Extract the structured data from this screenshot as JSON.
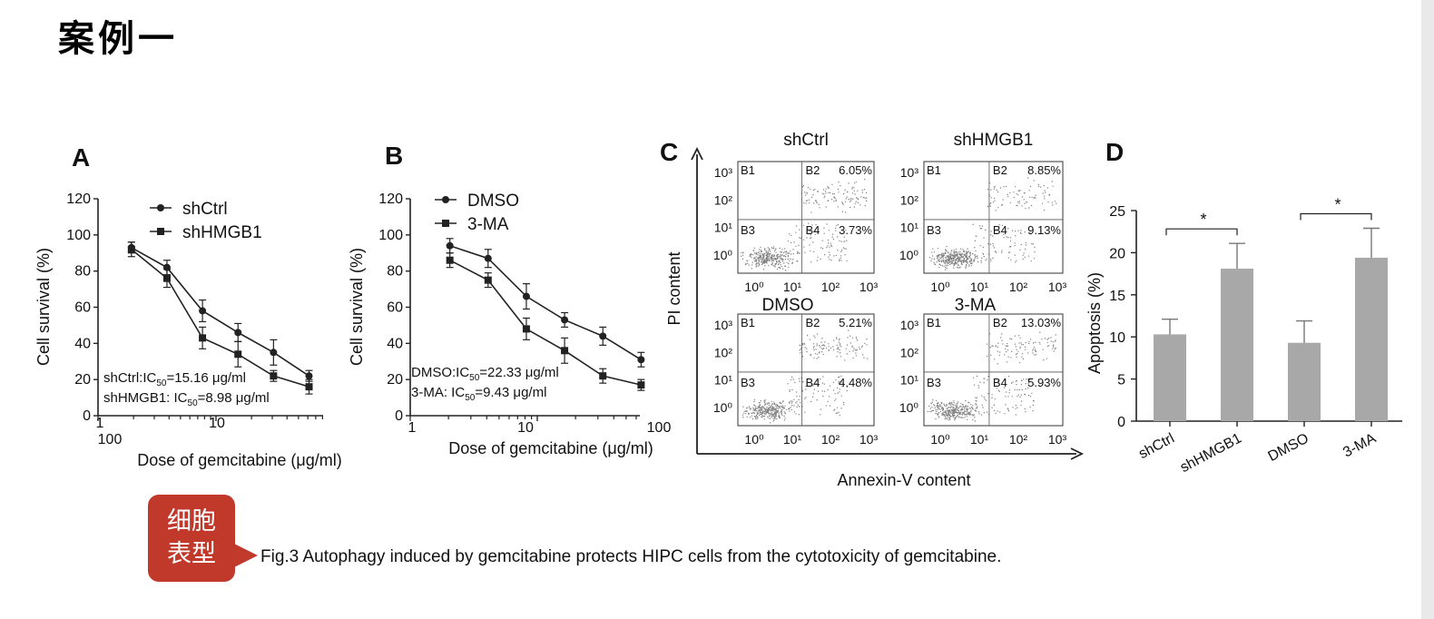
{
  "slide": {
    "title": "案例一"
  },
  "badge": {
    "line1": "细胞",
    "line2": "表型"
  },
  "caption": "Fig.3 Autophagy induced by gemcitabine protects HIPC cells from the cytotoxicity of gemcitabine.",
  "colors": {
    "badge": "#c0392b",
    "bar": "#a8a8a8",
    "line": "#222222",
    "dots": "#555555"
  },
  "chart_data": [
    {
      "panel": "A",
      "type": "line",
      "xlabel": "Dose of gemcitabine (μg/ml)",
      "ylabel": "Cell survival (%)",
      "x_scale": "log",
      "x_tick_labels": [
        "1",
        "10",
        "100"
      ],
      "y_ticks": [
        0,
        20,
        40,
        60,
        80,
        100,
        120
      ],
      "ylim": [
        0,
        120
      ],
      "legend_position": "top",
      "series": [
        {
          "name": "shCtrl",
          "marker": "circle",
          "x": [
            1.92,
            3.84,
            7.68,
            15.36,
            30.72,
            61.44
          ],
          "y": [
            93,
            82,
            58,
            46,
            35,
            22
          ],
          "err": [
            3,
            4,
            6,
            5,
            7,
            3
          ]
        },
        {
          "name": "shHMGB1",
          "marker": "square",
          "x": [
            1.92,
            3.84,
            7.68,
            15.36,
            30.72,
            61.44
          ],
          "y": [
            92,
            76,
            43,
            34,
            22,
            16
          ],
          "err": [
            4,
            5,
            6,
            7,
            3,
            4
          ]
        }
      ],
      "annotations": [
        {
          "prefix": "shCtrl:IC",
          "sub": "50",
          "suffix": "=15.16 μg/ml"
        },
        {
          "prefix": "shHMGB1: IC",
          "sub": "50",
          "suffix": "=8.98 μg/ml"
        }
      ]
    },
    {
      "panel": "B",
      "type": "line",
      "xlabel": "Dose of gemcitabine (μg/ml)",
      "ylabel": "Cell survival (%)",
      "x_scale": "log",
      "x_tick_labels": [
        "1",
        "10",
        "100"
      ],
      "y_ticks": [
        0,
        20,
        40,
        60,
        80,
        100,
        120
      ],
      "ylim": [
        0,
        120
      ],
      "legend_position": "top",
      "series": [
        {
          "name": "DMSO",
          "marker": "circle",
          "x": [
            2.05,
            4.1,
            8.2,
            16.4,
            32.8,
            65.6
          ],
          "y": [
            94,
            87,
            66,
            53,
            44,
            31
          ],
          "err": [
            4,
            5,
            7,
            4,
            5,
            4
          ]
        },
        {
          "name": "3-MA",
          "marker": "square",
          "x": [
            2.05,
            4.1,
            8.2,
            16.4,
            32.8,
            65.6
          ],
          "y": [
            86,
            75,
            48,
            36,
            22,
            17
          ],
          "err": [
            4,
            4,
            6,
            7,
            4,
            3
          ]
        }
      ],
      "annotations": [
        {
          "prefix": "DMSO:IC",
          "sub": "50",
          "suffix": "=22.33 μg/ml"
        },
        {
          "prefix": "3-MA: IC",
          "sub": "50",
          "suffix": "=9.43 μg/ml"
        }
      ]
    },
    {
      "panel": "C",
      "type": "scatter",
      "xlabel": "Annexin-V content",
      "ylabel": "PI content",
      "x_scale": "log",
      "y_scale": "log",
      "tick_labels": [
        "10⁰",
        "10¹",
        "10²",
        "10³"
      ],
      "quadrant_labels": [
        "B1",
        "B2",
        "B3",
        "B4"
      ],
      "plots": [
        {
          "title": "shCtrl",
          "B2": "6.05%",
          "B4": "3.73%"
        },
        {
          "title": "shHMGB1",
          "B2": "8.85%",
          "B4": "9.13%"
        },
        {
          "title": "DMSO",
          "B2": "5.21%",
          "B4": "4.48%"
        },
        {
          "title": "3-MA",
          "B2": "13.03%",
          "B4": "5.93%"
        }
      ]
    },
    {
      "panel": "D",
      "type": "bar",
      "ylabel": "Apoptosis (%)",
      "categories": [
        "shCtrl",
        "shHMGB1",
        "DMSO",
        "3-MA"
      ],
      "values": [
        10.3,
        18.1,
        9.3,
        19.4
      ],
      "errors": [
        1.8,
        3.0,
        2.6,
        3.5
      ],
      "ylim": [
        0,
        25
      ],
      "y_ticks": [
        0,
        5,
        10,
        15,
        20,
        25
      ],
      "significance": [
        {
          "from": 0,
          "to": 1,
          "label": "*"
        },
        {
          "from": 2,
          "to": 3,
          "label": "*"
        }
      ]
    }
  ]
}
